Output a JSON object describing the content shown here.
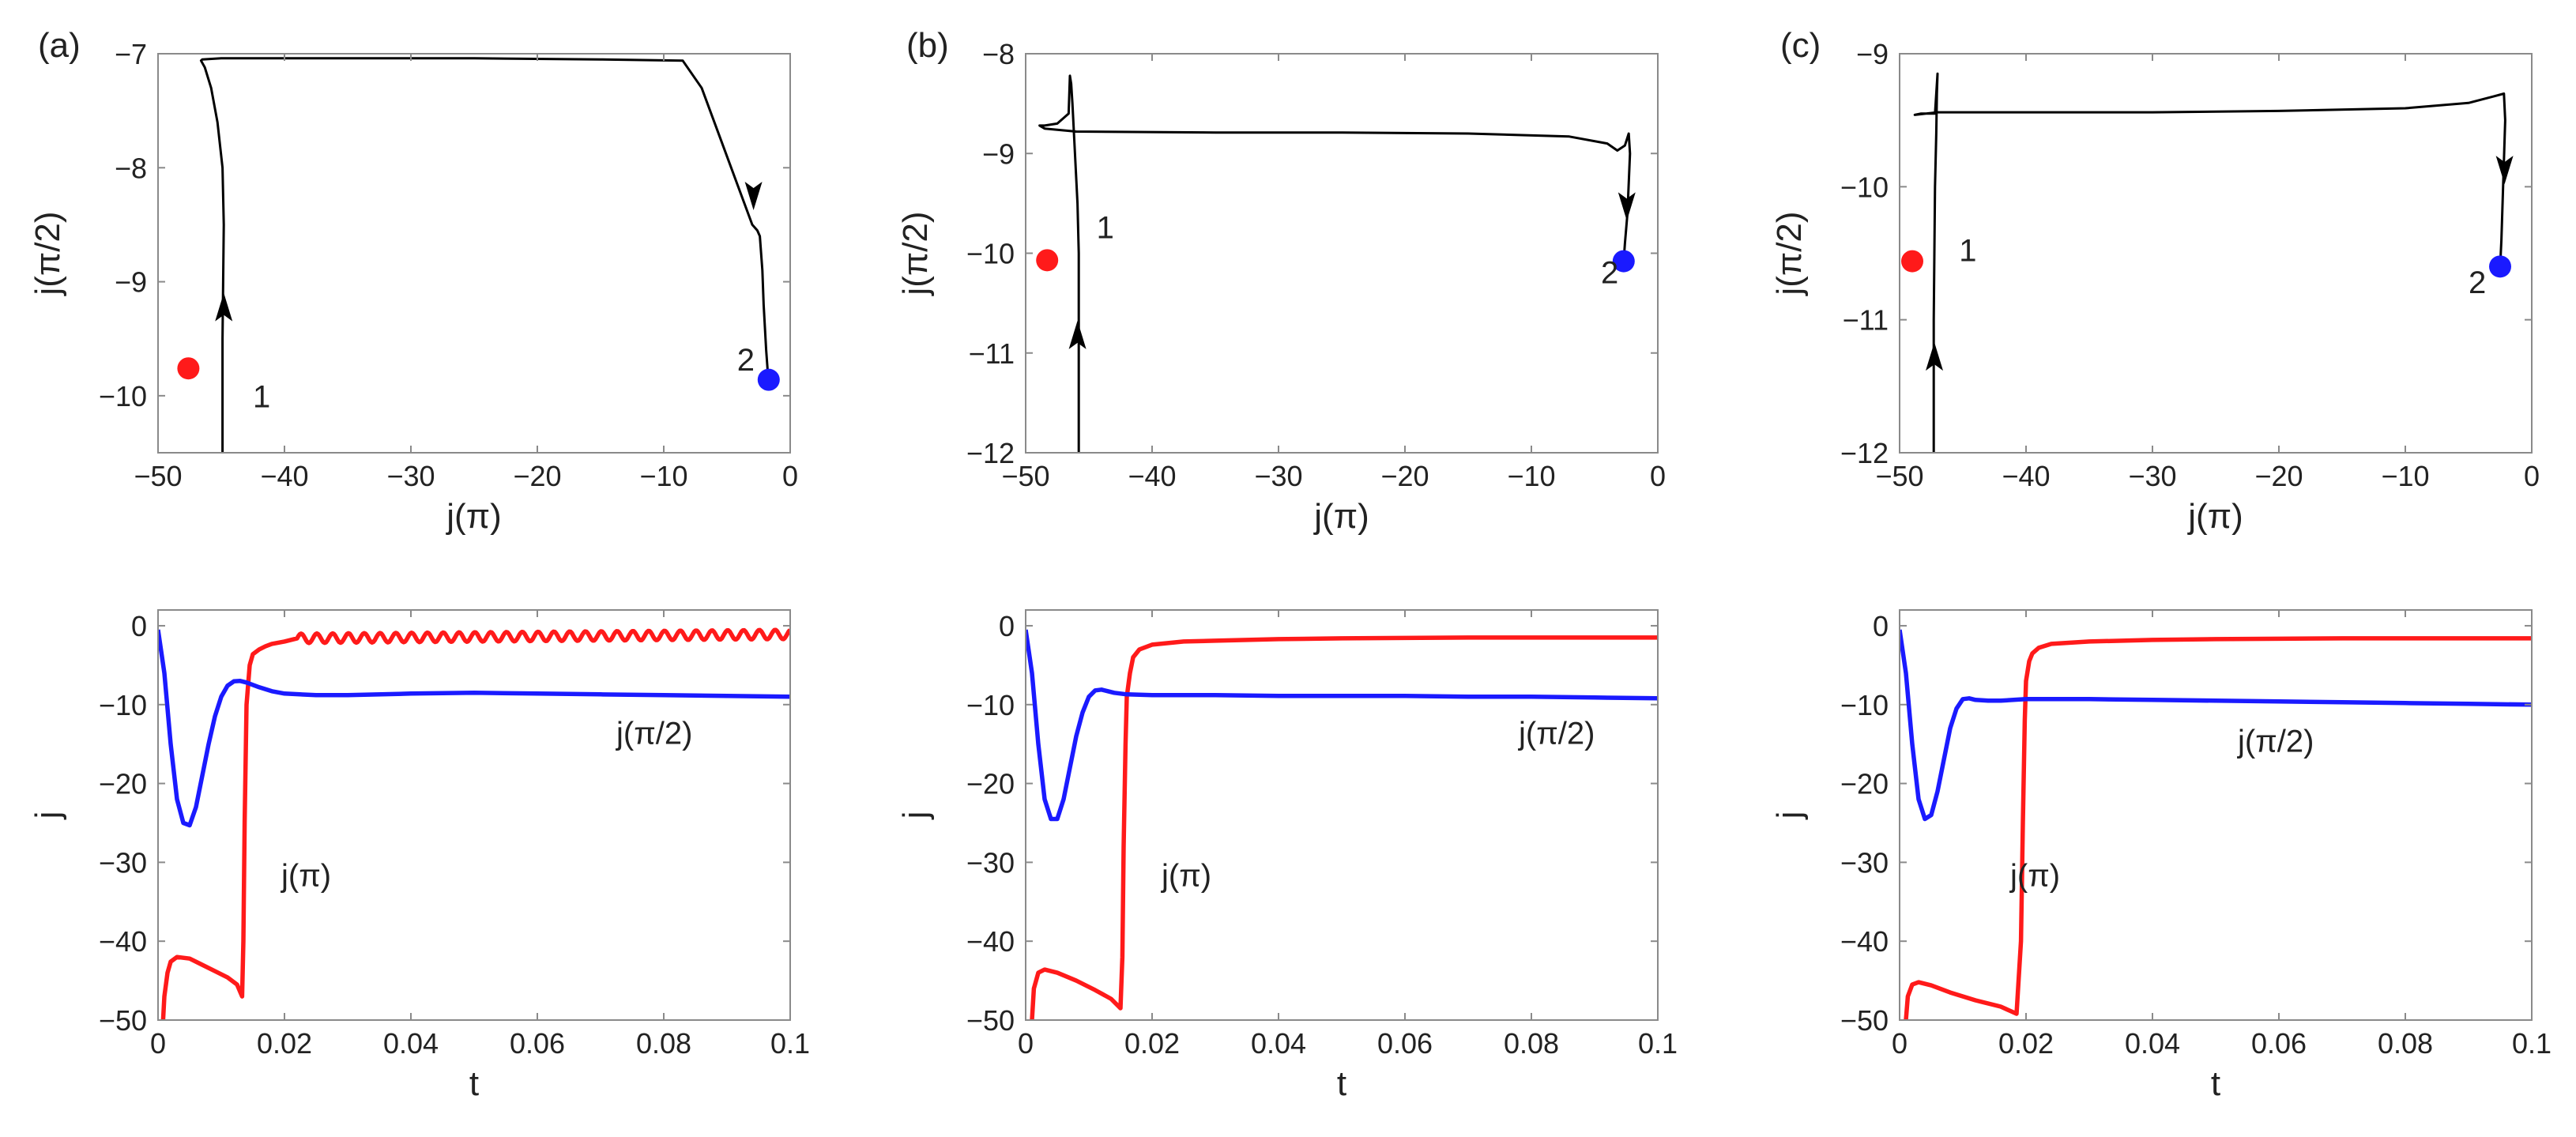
{
  "figure": {
    "colors": {
      "red": "#ff1a1a",
      "blue": "#1a1aff",
      "trajectory": "#000000",
      "axis": "#8a8a8a"
    }
  },
  "chart_data": [
    {
      "type": "line",
      "panel": "(a)",
      "title": "",
      "xlabel": "j(π)",
      "ylabel": "j(π/2)",
      "xlim": [
        -50,
        0
      ],
      "ylim": [
        -10.5,
        -7
      ],
      "xticks": [
        -50,
        -40,
        -30,
        -20,
        -10,
        0
      ],
      "xticklabels": [
        "−50",
        "−40",
        "−30",
        "−20",
        "−10",
        "0"
      ],
      "yticks": [
        -10,
        -9,
        -8,
        -7
      ],
      "yticklabels": [
        "−10",
        "−9",
        "−8",
        "−7"
      ],
      "series": [
        {
          "name": "trajectory",
          "color": "#000000",
          "x": [
            -44.9,
            -44.9,
            -44.9,
            -44.85,
            -44.8,
            -44.9,
            -45.3,
            -45.8,
            -46.3,
            -46.6,
            -46.5,
            -45,
            -35,
            -25,
            -15,
            -8.5,
            -7,
            -5.5,
            -4,
            -3,
            -2.6,
            -2.4,
            -2.2,
            -2.1,
            -2,
            -1.9,
            -1.8,
            -1.75
          ],
          "y": [
            -10.5,
            -10,
            -9.5,
            -9,
            -8.5,
            -8,
            -7.6,
            -7.3,
            -7.12,
            -7.06,
            -7.05,
            -7.04,
            -7.04,
            -7.04,
            -7.05,
            -7.06,
            -7.3,
            -7.75,
            -8.2,
            -8.5,
            -8.55,
            -8.6,
            -8.9,
            -9.2,
            -9.4,
            -9.6,
            -9.75,
            -9.86
          ]
        }
      ],
      "points": [
        {
          "name": "initial",
          "x": -47.6,
          "y": -9.76,
          "color": "#ff1a1a"
        },
        {
          "name": "final",
          "x": -1.7,
          "y": -9.86,
          "color": "#1a1aff"
        }
      ],
      "arrows": [
        {
          "x": -44.8,
          "y": -9.25,
          "direction": "up"
        },
        {
          "x": -2.9,
          "y": -8.22,
          "direction": "down"
        }
      ],
      "annotations": [
        {
          "text": "1",
          "x": -42.5,
          "y": -10.1
        },
        {
          "text": "2",
          "x": -4.2,
          "y": -9.78
        }
      ]
    },
    {
      "type": "line",
      "panel": "(b)",
      "title": "",
      "xlabel": "j(π)",
      "ylabel": "j(π/2)",
      "xlim": [
        -50,
        0
      ],
      "ylim": [
        -12,
        -8
      ],
      "xticks": [
        -50,
        -40,
        -30,
        -20,
        -10,
        0
      ],
      "xticklabels": [
        "−50",
        "−40",
        "−30",
        "−20",
        "−10",
        "0"
      ],
      "yticks": [
        -12,
        -11,
        -10,
        -9,
        -8
      ],
      "yticklabels": [
        "−12",
        "−11",
        "−10",
        "−9",
        "−8"
      ],
      "series": [
        {
          "name": "trajectory",
          "color": "#000000",
          "x": [
            -45.8,
            -45.8,
            -45.8,
            -45.9,
            -46.1,
            -46.3,
            -46.4,
            -46.5,
            -46.6,
            -47.5,
            -48.5,
            -48.9,
            -48.5,
            -46,
            -35,
            -25,
            -15,
            -7,
            -4,
            -3.2,
            -2.6,
            -2.3,
            -2.2,
            -2.3,
            -2.4,
            -2.6,
            -2.7
          ],
          "y": [
            -12,
            -11,
            -10,
            -9.5,
            -9,
            -8.5,
            -8.3,
            -8.22,
            -8.6,
            -8.7,
            -8.72,
            -8.72,
            -8.75,
            -8.78,
            -8.79,
            -8.79,
            -8.8,
            -8.83,
            -8.9,
            -8.97,
            -8.92,
            -8.8,
            -9.0,
            -9.3,
            -9.6,
            -9.9,
            -10.08
          ]
        }
      ],
      "points": [
        {
          "name": "initial",
          "x": -48.3,
          "y": -10.07,
          "color": "#ff1a1a"
        },
        {
          "name": "final",
          "x": -2.7,
          "y": -10.08,
          "color": "#1a1aff"
        }
      ],
      "arrows": [
        {
          "x": -45.9,
          "y": -10.85,
          "direction": "up"
        },
        {
          "x": -2.45,
          "y": -9.5,
          "direction": "down"
        }
      ],
      "annotations": [
        {
          "text": "1",
          "x": -44.4,
          "y": -9.85
        },
        {
          "text": "2",
          "x": -4.5,
          "y": -10.3
        }
      ]
    },
    {
      "type": "line",
      "panel": "(c)",
      "title": "",
      "xlabel": "j(π)",
      "ylabel": "j(π/2)",
      "xlim": [
        -50,
        0
      ],
      "ylim": [
        -12,
        -9
      ],
      "xticks": [
        -50,
        -40,
        -30,
        -20,
        -10,
        0
      ],
      "xticklabels": [
        "−50",
        "−40",
        "−30",
        "−20",
        "−10",
        "0"
      ],
      "yticks": [
        -12,
        -11,
        -10,
        -9
      ],
      "yticklabels": [
        "−12",
        "−11",
        "−10",
        "−9"
      ],
      "series": [
        {
          "name": "trajectory",
          "color": "#000000",
          "x": [
            -47.3,
            -47.3,
            -47.25,
            -47.2,
            -47.1,
            -47.05,
            -47,
            -47.2,
            -48.3,
            -48.8,
            -47,
            -40,
            -30,
            -20,
            -10,
            -5,
            -3,
            -2.2,
            -2.1,
            -2.2,
            -2.3,
            -2.4,
            -2.5
          ],
          "y": [
            -12,
            -11,
            -10.5,
            -10,
            -9.6,
            -9.3,
            -9.15,
            -9.45,
            -9.45,
            -9.46,
            -9.44,
            -9.44,
            -9.44,
            -9.43,
            -9.41,
            -9.37,
            -9.32,
            -9.3,
            -9.5,
            -9.8,
            -10.1,
            -10.4,
            -10.6
          ]
        }
      ],
      "points": [
        {
          "name": "initial",
          "x": -49,
          "y": -10.56,
          "color": "#ff1a1a"
        },
        {
          "name": "final",
          "x": -2.5,
          "y": -10.6,
          "color": "#1a1aff"
        }
      ],
      "arrows": [
        {
          "x": -47.25,
          "y": -11.3,
          "direction": "up"
        },
        {
          "x": -2.15,
          "y": -9.85,
          "direction": "down"
        }
      ],
      "annotations": [
        {
          "text": "1",
          "x": -45.3,
          "y": -10.56
        },
        {
          "text": "2",
          "x": -5,
          "y": -10.8
        }
      ]
    },
    {
      "type": "line",
      "panel": "(a) time series",
      "title": "",
      "xlabel": "t",
      "ylabel": "j",
      "xlim": [
        0,
        0.1
      ],
      "ylim": [
        -50,
        2
      ],
      "xticks": [
        0,
        0.02,
        0.04,
        0.06,
        0.08,
        0.1
      ],
      "xticklabels": [
        "0",
        "0.02",
        "0.04",
        "0.06",
        "0.08",
        "0.1"
      ],
      "yticks": [
        -50,
        -40,
        -30,
        -20,
        -10,
        0
      ],
      "yticklabels": [
        "−50",
        "−40",
        "−30",
        "−20",
        "−10",
        "0"
      ],
      "series": [
        {
          "name": "j(π)",
          "color": "#ff1a1a",
          "x": [
            0.0008,
            0.001,
            0.0015,
            0.002,
            0.003,
            0.005,
            0.007,
            0.009,
            0.011,
            0.0125,
            0.0133,
            0.0135,
            0.0137,
            0.014,
            0.0145,
            0.015,
            0.016,
            0.017,
            0.018,
            0.02,
            0.022
          ],
          "y": [
            -50,
            -47,
            -44,
            -42.6,
            -42,
            -42.2,
            -43,
            -43.8,
            -44.6,
            -45.5,
            -47,
            -40,
            -25,
            -10,
            -5,
            -3.6,
            -3,
            -2.6,
            -2.3,
            -2,
            -1.6
          ],
          "osc": {
            "from": 0.022,
            "to": 0.1,
            "center_start": -1.6,
            "center_end": -1.1,
            "amp": 0.6,
            "period": 0.0025
          }
        },
        {
          "name": "j(π/2)",
          "color": "#1a1aff",
          "x": [
            0,
            0.001,
            0.002,
            0.003,
            0.004,
            0.005,
            0.006,
            0.007,
            0.008,
            0.009,
            0.01,
            0.011,
            0.012,
            0.013,
            0.014,
            0.016,
            0.018,
            0.02,
            0.025,
            0.03,
            0.04,
            0.05,
            0.06,
            0.07,
            0.08,
            0.09,
            0.1
          ],
          "y": [
            -0.5,
            -6,
            -15,
            -22,
            -25,
            -25.3,
            -23,
            -19,
            -15,
            -11.5,
            -9,
            -7.6,
            -7.05,
            -7,
            -7.2,
            -7.8,
            -8.3,
            -8.6,
            -8.8,
            -8.8,
            -8.6,
            -8.5,
            -8.6,
            -8.7,
            -8.8,
            -8.9,
            -9
          ]
        }
      ],
      "annotations": [
        {
          "text": "j(π)",
          "x": 0.0195,
          "y": -33
        },
        {
          "text": "j(π/2)",
          "x": 0.0725,
          "y": -15
        }
      ]
    },
    {
      "type": "line",
      "panel": "(b) time series",
      "title": "",
      "xlabel": "t",
      "ylabel": "j",
      "xlim": [
        0,
        0.1
      ],
      "ylim": [
        -50,
        2
      ],
      "xticks": [
        0,
        0.02,
        0.04,
        0.06,
        0.08,
        0.1
      ],
      "xticklabels": [
        "0",
        "0.02",
        "0.04",
        "0.06",
        "0.08",
        "0.1"
      ],
      "yticks": [
        -50,
        -40,
        -30,
        -20,
        -10,
        0
      ],
      "yticklabels": [
        "−50",
        "−40",
        "−30",
        "−20",
        "−10",
        "0"
      ],
      "series": [
        {
          "name": "j(π)",
          "color": "#ff1a1a",
          "x": [
            0.001,
            0.0013,
            0.002,
            0.003,
            0.005,
            0.008,
            0.011,
            0.0135,
            0.015,
            0.0153,
            0.0155,
            0.0158,
            0.016,
            0.0165,
            0.017,
            0.018,
            0.02,
            0.025,
            0.03,
            0.04,
            0.05,
            0.06,
            0.07,
            0.08,
            0.09,
            0.1
          ],
          "y": [
            -50,
            -46,
            -44,
            -43.6,
            -44,
            -45,
            -46.2,
            -47.3,
            -48.5,
            -42,
            -28,
            -15,
            -9,
            -6,
            -4,
            -3,
            -2.4,
            -2,
            -1.9,
            -1.7,
            -1.6,
            -1.55,
            -1.5,
            -1.5,
            -1.5,
            -1.5
          ]
        },
        {
          "name": "j(π/2)",
          "color": "#1a1aff",
          "x": [
            0,
            0.001,
            0.002,
            0.003,
            0.004,
            0.005,
            0.006,
            0.007,
            0.008,
            0.009,
            0.01,
            0.011,
            0.012,
            0.013,
            0.014,
            0.016,
            0.02,
            0.03,
            0.04,
            0.05,
            0.06,
            0.07,
            0.08,
            0.09,
            0.1
          ],
          "y": [
            -0.5,
            -6,
            -15,
            -22,
            -24.5,
            -24.5,
            -22,
            -18,
            -14,
            -11,
            -9,
            -8.2,
            -8.1,
            -8.3,
            -8.5,
            -8.7,
            -8.8,
            -8.8,
            -8.9,
            -8.9,
            -8.9,
            -9,
            -9,
            -9.1,
            -9.2
          ]
        }
      ],
      "annotations": [
        {
          "text": "j(π)",
          "x": 0.0215,
          "y": -33
        },
        {
          "text": "j(π/2)",
          "x": 0.078,
          "y": -15
        }
      ]
    },
    {
      "type": "line",
      "panel": "(c) time series",
      "title": "",
      "xlabel": "t",
      "ylabel": "j",
      "xlim": [
        0,
        0.1
      ],
      "ylim": [
        -50,
        2
      ],
      "xticks": [
        0,
        0.02,
        0.04,
        0.06,
        0.08,
        0.1
      ],
      "xticklabels": [
        "0",
        "0.02",
        "0.04",
        "0.06",
        "0.08",
        "0.1"
      ],
      "yticks": [
        -50,
        -40,
        -30,
        -20,
        -10,
        0
      ],
      "yticklabels": [
        "−50",
        "−40",
        "−30",
        "−20",
        "−10",
        "0"
      ],
      "series": [
        {
          "name": "j(π)",
          "color": "#ff1a1a",
          "x": [
            0.001,
            0.0013,
            0.002,
            0.003,
            0.005,
            0.008,
            0.012,
            0.016,
            0.0185,
            0.0192,
            0.0195,
            0.0198,
            0.02,
            0.0205,
            0.021,
            0.022,
            0.024,
            0.03,
            0.04,
            0.05,
            0.06,
            0.07,
            0.08,
            0.09,
            0.1
          ],
          "y": [
            -50,
            -47,
            -45.5,
            -45.2,
            -45.6,
            -46.5,
            -47.5,
            -48.3,
            -49.2,
            -40,
            -25,
            -12,
            -7,
            -4.5,
            -3.5,
            -2.8,
            -2.3,
            -2,
            -1.8,
            -1.7,
            -1.65,
            -1.6,
            -1.6,
            -1.6,
            -1.6
          ]
        },
        {
          "name": "j(π/2)",
          "color": "#1a1aff",
          "x": [
            0,
            0.001,
            0.002,
            0.003,
            0.004,
            0.005,
            0.006,
            0.007,
            0.008,
            0.009,
            0.01,
            0.011,
            0.012,
            0.014,
            0.016,
            0.02,
            0.03,
            0.04,
            0.05,
            0.06,
            0.07,
            0.08,
            0.09,
            0.1
          ],
          "y": [
            -0.5,
            -6,
            -15,
            -22,
            -24.5,
            -24,
            -21,
            -17,
            -13,
            -10.5,
            -9.3,
            -9.2,
            -9.4,
            -9.5,
            -9.5,
            -9.3,
            -9.3,
            -9.4,
            -9.5,
            -9.6,
            -9.7,
            -9.8,
            -9.9,
            -10
          ]
        }
      ],
      "annotations": [
        {
          "text": "j(π)",
          "x": 0.0175,
          "y": -33
        },
        {
          "text": "j(π/2)",
          "x": 0.0535,
          "y": -16
        }
      ]
    }
  ]
}
